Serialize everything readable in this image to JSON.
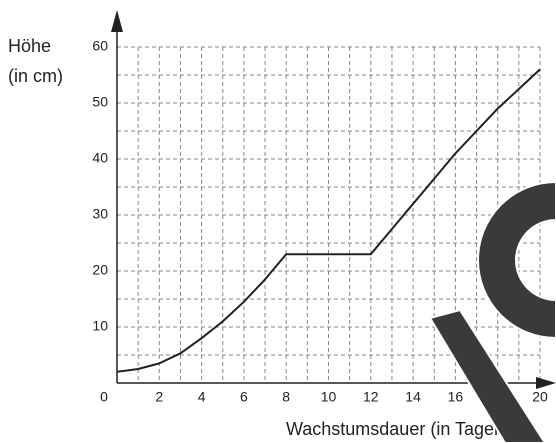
{
  "chart_data": {
    "type": "line",
    "ylabel": [
      "Höhe",
      "(in cm)"
    ],
    "xlabel": "Wachstumsdauer (in Tagen)",
    "x": [
      0,
      1,
      2,
      3,
      4,
      5,
      6,
      7,
      8,
      9,
      10,
      11,
      12,
      13,
      14,
      15,
      16,
      17,
      18,
      19,
      20
    ],
    "series": [
      {
        "color": "#222222",
        "values": [
          2,
          2.5,
          3.5,
          5.3,
          8,
          11,
          14.5,
          18.5,
          23,
          23,
          23,
          23,
          23,
          27.5,
          32,
          36.5,
          41,
          45,
          49,
          52.5,
          56
        ]
      }
    ],
    "xlim": [
      0,
      20
    ],
    "ylim": [
      0,
      60
    ],
    "xticks": [
      0,
      2,
      4,
      6,
      8,
      10,
      12,
      14,
      16,
      18,
      20
    ],
    "yticks": [
      10,
      20,
      30,
      40,
      50,
      60
    ],
    "xminor": [
      1,
      3,
      5,
      7,
      9,
      11,
      13,
      15,
      17,
      19
    ],
    "yminor": [
      5,
      15,
      25,
      35,
      45,
      55
    ],
    "grid": true
  }
}
